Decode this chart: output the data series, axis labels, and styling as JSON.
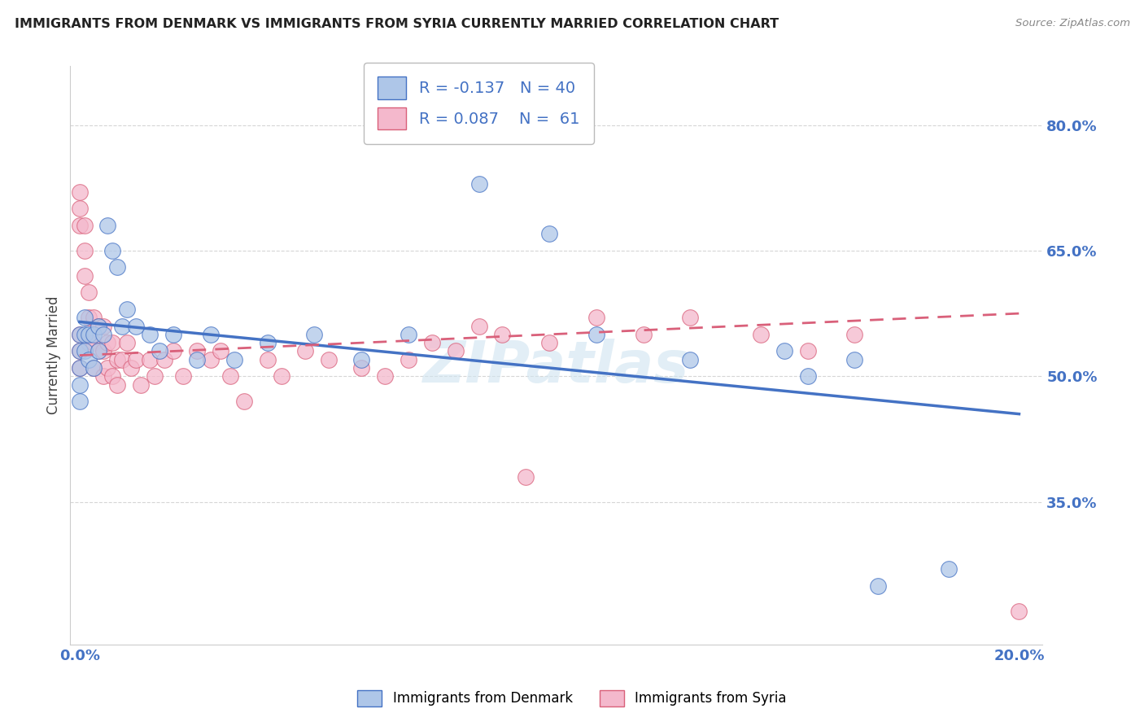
{
  "title": "IMMIGRANTS FROM DENMARK VS IMMIGRANTS FROM SYRIA CURRENTLY MARRIED CORRELATION CHART",
  "source": "Source: ZipAtlas.com",
  "ylabel_label": "Currently Married",
  "legend_label1": "Immigrants from Denmark",
  "legend_label2": "Immigrants from Syria",
  "R1": -0.137,
  "N1": 40,
  "R2": 0.087,
  "N2": 61,
  "color1": "#aec6e8",
  "color2": "#f4b8cc",
  "line_color1": "#4472c4",
  "line_color2": "#d9607a",
  "watermark": "ZIPatlas",
  "xlim_min": -0.002,
  "xlim_max": 0.205,
  "ylim_min": 0.18,
  "ylim_max": 0.87,
  "xtick_pos": [
    0.0,
    0.05,
    0.1,
    0.15,
    0.2
  ],
  "xtick_labels": [
    "0.0%",
    "",
    "",
    "",
    "20.0%"
  ],
  "ytick_pos": [
    0.35,
    0.5,
    0.65,
    0.8
  ],
  "ytick_labels": [
    "35.0%",
    "50.0%",
    "65.0%",
    "80.0%"
  ],
  "dk_x": [
    0.0,
    0.0,
    0.0,
    0.0,
    0.0,
    0.001,
    0.001,
    0.001,
    0.002,
    0.002,
    0.003,
    0.003,
    0.004,
    0.004,
    0.005,
    0.006,
    0.007,
    0.008,
    0.009,
    0.01,
    0.012,
    0.015,
    0.017,
    0.02,
    0.025,
    0.028,
    0.033,
    0.04,
    0.05,
    0.06,
    0.07,
    0.085,
    0.1,
    0.11,
    0.13,
    0.15,
    0.155,
    0.165,
    0.17,
    0.185
  ],
  "dk_y": [
    0.55,
    0.53,
    0.51,
    0.49,
    0.47,
    0.57,
    0.55,
    0.53,
    0.55,
    0.52,
    0.55,
    0.51,
    0.56,
    0.53,
    0.55,
    0.68,
    0.65,
    0.63,
    0.56,
    0.58,
    0.56,
    0.55,
    0.53,
    0.55,
    0.52,
    0.55,
    0.52,
    0.54,
    0.55,
    0.52,
    0.55,
    0.73,
    0.67,
    0.55,
    0.52,
    0.53,
    0.5,
    0.52,
    0.25,
    0.27
  ],
  "sy_x": [
    0.0,
    0.0,
    0.0,
    0.0,
    0.0,
    0.0,
    0.001,
    0.001,
    0.001,
    0.002,
    0.002,
    0.002,
    0.003,
    0.003,
    0.003,
    0.004,
    0.004,
    0.005,
    0.005,
    0.005,
    0.006,
    0.006,
    0.007,
    0.007,
    0.008,
    0.008,
    0.009,
    0.01,
    0.011,
    0.012,
    0.013,
    0.015,
    0.016,
    0.018,
    0.02,
    0.022,
    0.025,
    0.028,
    0.03,
    0.032,
    0.035,
    0.04,
    0.043,
    0.048,
    0.053,
    0.06,
    0.065,
    0.07,
    0.075,
    0.08,
    0.085,
    0.09,
    0.095,
    0.1,
    0.11,
    0.12,
    0.13,
    0.145,
    0.155,
    0.165,
    0.2
  ],
  "sy_y": [
    0.72,
    0.7,
    0.68,
    0.55,
    0.53,
    0.51,
    0.68,
    0.65,
    0.62,
    0.6,
    0.57,
    0.54,
    0.57,
    0.54,
    0.51,
    0.56,
    0.53,
    0.56,
    0.53,
    0.5,
    0.54,
    0.51,
    0.54,
    0.5,
    0.52,
    0.49,
    0.52,
    0.54,
    0.51,
    0.52,
    0.49,
    0.52,
    0.5,
    0.52,
    0.53,
    0.5,
    0.53,
    0.52,
    0.53,
    0.5,
    0.47,
    0.52,
    0.5,
    0.53,
    0.52,
    0.51,
    0.5,
    0.52,
    0.54,
    0.53,
    0.56,
    0.55,
    0.38,
    0.54,
    0.57,
    0.55,
    0.57,
    0.55,
    0.53,
    0.55,
    0.22
  ],
  "dk_line_x0": 0.0,
  "dk_line_x1": 0.2,
  "dk_line_y0": 0.565,
  "dk_line_y1": 0.455,
  "sy_line_x0": 0.0,
  "sy_line_x1": 0.2,
  "sy_line_y0": 0.525,
  "sy_line_y1": 0.575
}
